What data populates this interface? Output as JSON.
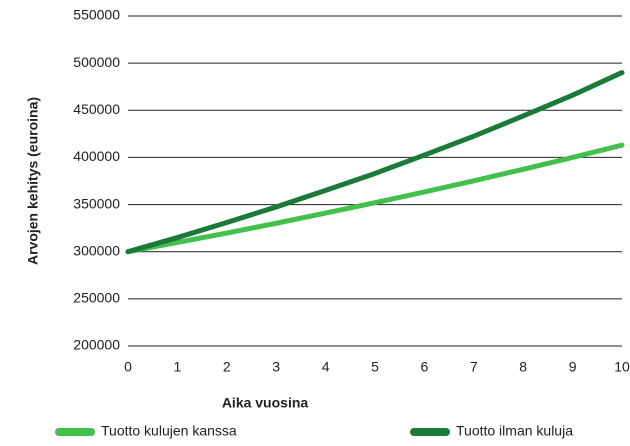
{
  "chart_data": {
    "type": "line",
    "x": [
      0,
      1,
      2,
      3,
      4,
      5,
      6,
      7,
      8,
      9,
      10
    ],
    "xlabel": "Aika vuosina",
    "ylabel": "Arvojen kehitys (euroina)",
    "series": [
      {
        "name": "Tuotto kulujen kanssa",
        "color": "#43c04c",
        "values": [
          300000,
          309800,
          319800,
          330200,
          341000,
          352000,
          363400,
          375200,
          387400,
          400000,
          413000
        ]
      },
      {
        "name": "Tuotto ilman kuluja",
        "color": "#1b7a3a",
        "values": [
          300000,
          315000,
          331000,
          347500,
          365000,
          383000,
          402500,
          422500,
          444000,
          466000,
          490000
        ]
      }
    ],
    "xlim": [
      0,
      10
    ],
    "xticks": [
      0,
      1,
      2,
      3,
      4,
      5,
      6,
      7,
      8,
      9,
      10
    ],
    "ylim": [
      200000,
      550000
    ],
    "yticks": [
      200000,
      250000,
      300000,
      350000,
      400000,
      450000,
      500000,
      550000
    ],
    "grid": true,
    "legend": "bottom"
  }
}
